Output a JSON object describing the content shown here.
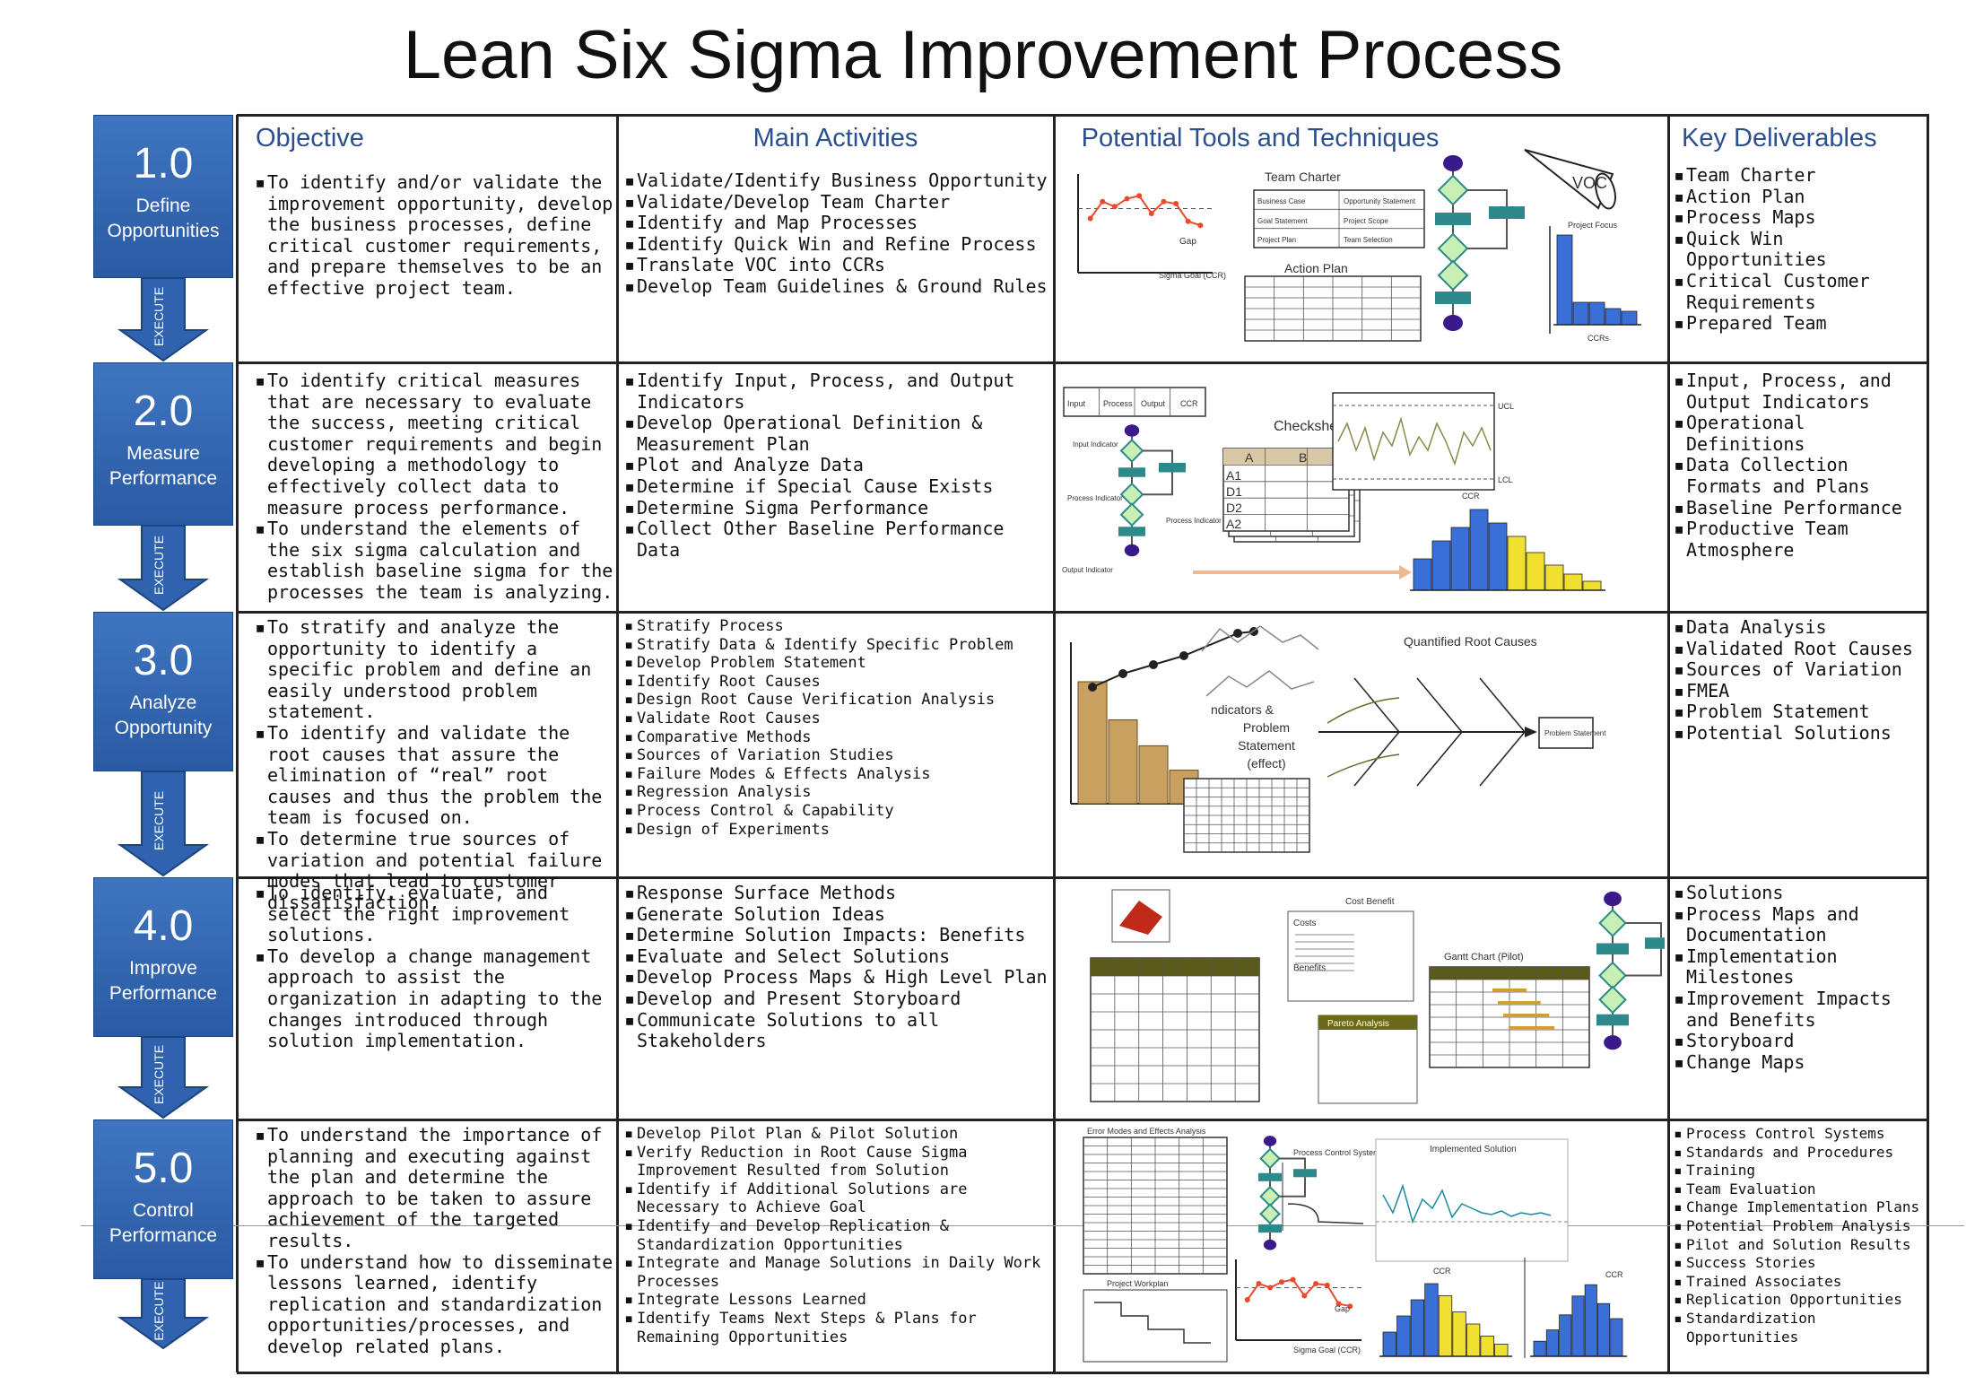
{
  "title": "Lean Six Sigma Improvement Process",
  "headers": {
    "objective": "Objective",
    "activities": "Main Activities",
    "tools": "Potential Tools and Techniques",
    "deliverables": "Key Deliverables"
  },
  "execute_label": "EXECUTE",
  "phases": [
    {
      "number": "1.0",
      "name_line1": "Define",
      "name_line2": "Opportunities",
      "objective": [
        "To identify and/or validate the improvement opportunity, develop the business processes, define critical customer requirements, and prepare themselves to be an effective project team."
      ],
      "activities": [
        "Validate/Identify Business Opportunity",
        "Validate/Develop Team Charter",
        "Identify and Map Processes",
        "Identify Quick Win and Refine Process",
        "Translate VOC into CCRs",
        "Develop Team Guidelines & Ground Rules"
      ],
      "deliverables": [
        "Team Charter",
        "Action Plan",
        "Process Maps",
        "Quick Win Opportunities",
        "Critical Customer Requirements",
        "Prepared Team"
      ],
      "tool_labels": [
        "Team Charter",
        "Action Plan",
        "VOC",
        "Gap",
        "Sigma Goal (CCR)",
        "Project Focus",
        "CCRs",
        "Business Case",
        "Opportunity Statement",
        "Goal Statement",
        "Project Scope",
        "Project Plan",
        "Team Selection"
      ]
    },
    {
      "number": "2.0",
      "name_line1": "Measure",
      "name_line2": "Performance",
      "objective": [
        "To identify critical measures that are necessary to evaluate the success, meeting critical customer requirements and begin developing a methodology to effectively collect data to measure process performance.",
        "To understand the elements of the six sigma calculation and establish baseline sigma for the processes the team is analyzing."
      ],
      "activities": [
        "Identify Input, Process, and Output Indicators",
        "Develop Operational Definition & Measurement Plan",
        "Plot and Analyze Data",
        "Determine if Special Cause Exists",
        "Determine Sigma Performance",
        "Collect Other Baseline Performance Data"
      ],
      "deliverables": [
        "Input, Process, and Output Indicators",
        "Operational Definitions",
        "Data Collection Formats and Plans",
        "Baseline Performance",
        "Productive Team Atmosphere"
      ],
      "tool_labels": [
        "Input",
        "Process",
        "Output",
        "CCR",
        "Input Indicator",
        "Process Indicator",
        "Process Indicator",
        "Output Indicator",
        "Checksheets",
        "A",
        "B",
        "A1",
        "D1",
        "D2",
        "A2",
        "UCL",
        "LCL",
        "CCR"
      ]
    },
    {
      "number": "3.0",
      "name_line1": "Analyze",
      "name_line2": "Opportunity",
      "objective": [
        "To stratify and analyze the opportunity to identify a specific problem and define an easily understood problem statement.",
        "To identify and validate the root causes that assure the elimination of “real” root causes and thus the problem the team is focused on.",
        "To determine true sources of variation and potential failure modes that lead to customer dissatisfaction."
      ],
      "activities": [
        "Stratify Process",
        "Stratify Data & Identify Specific Problem",
        "Develop Problem Statement",
        "Identify Root Causes",
        "Design Root Cause Verification Analysis",
        "Validate Root Causes",
        "Comparative Methods",
        "Sources of Variation Studies",
        "Failure Modes & Effects Analysis",
        "Regression Analysis",
        "Process Control & Capability",
        "Design of Experiments"
      ],
      "deliverables": [
        "Data Analysis",
        "Validated Root Causes",
        "Sources of Variation",
        "FMEA",
        "Problem Statement",
        "Potential Solutions"
      ],
      "tool_labels": [
        "Quantified Root Causes",
        "ndicators &",
        "Problem",
        "Statement",
        "(effect)",
        "Problem Statement"
      ]
    },
    {
      "number": "4.0",
      "name_line1": "Improve",
      "name_line2": "Performance",
      "objective": [
        "To identify, evaluate, and select the right improvement solutions.",
        "To develop a change management approach to assist the organization in adapting to the changes introduced through solution implementation."
      ],
      "activities": [
        "Response Surface Methods",
        "Generate Solution Ideas",
        "Determine Solution Impacts: Benefits",
        "Evaluate and Select Solutions",
        "Develop Process Maps & High Level Plan",
        "Develop and Present Storyboard",
        "Communicate Solutions to all Stakeholders"
      ],
      "deliverables": [
        "Solutions",
        "Process Maps and Documentation",
        "Implementation Milestones",
        "Improvement Impacts and Benefits",
        "Storyboard",
        "Change Maps"
      ],
      "tool_labels": [
        "Cost Benefit",
        "Costs",
        "Benefits",
        "Gantt Chart (Pilot)",
        "Pareto Analysis"
      ]
    },
    {
      "number": "5.0",
      "name_line1": "Control",
      "name_line2": "Performance",
      "objective": [
        "To understand the importance of planning and executing against the plan and determine the approach to be taken to assure achievement of the targeted results.",
        "To understand how to disseminate lessons learned, identify replication and standardization opportunities/processes, and develop related plans."
      ],
      "activities": [
        "Develop Pilot Plan & Pilot Solution",
        "Verify Reduction in Root Cause Sigma Improvement Resulted from Solution",
        "Identify if Additional Solutions are Necessary to Achieve Goal",
        "Identify and Develop Replication & Standardization Opportunities",
        "Integrate and Manage Solutions in Daily Work Processes",
        "Integrate Lessons Learned",
        "Identify Teams Next Steps & Plans for Remaining Opportunities"
      ],
      "deliverables": [
        "Process Control Systems",
        "Standards and Procedures",
        "Training",
        "Team Evaluation",
        "Change Implementation Plans",
        "Potential Problem Analysis",
        "Pilot and Solution Results",
        "Success Stories",
        "Trained Associates",
        "Replication Opportunities",
        "Standardization Opportunities"
      ],
      "tool_labels": [
        "Error Modes and Effects Analysis",
        "Process Control System",
        "Implemented Solution",
        "Project Workplan",
        "Gap",
        "Sigma Goal (CCR)",
        "CCR",
        "CCR"
      ]
    }
  ],
  "colors": {
    "phase_blue": "#3068b4",
    "header_blue": "#2b4f8f",
    "flow_teal": "#2e8a8a",
    "flow_green": "#c8f0b4",
    "flow_purple": "#3a1a8a",
    "hist_blue": "#3a6fd8",
    "hist_yellow": "#f0e030",
    "run_red": "#e84a2a",
    "gantt_olive": "#6a6a1a"
  }
}
